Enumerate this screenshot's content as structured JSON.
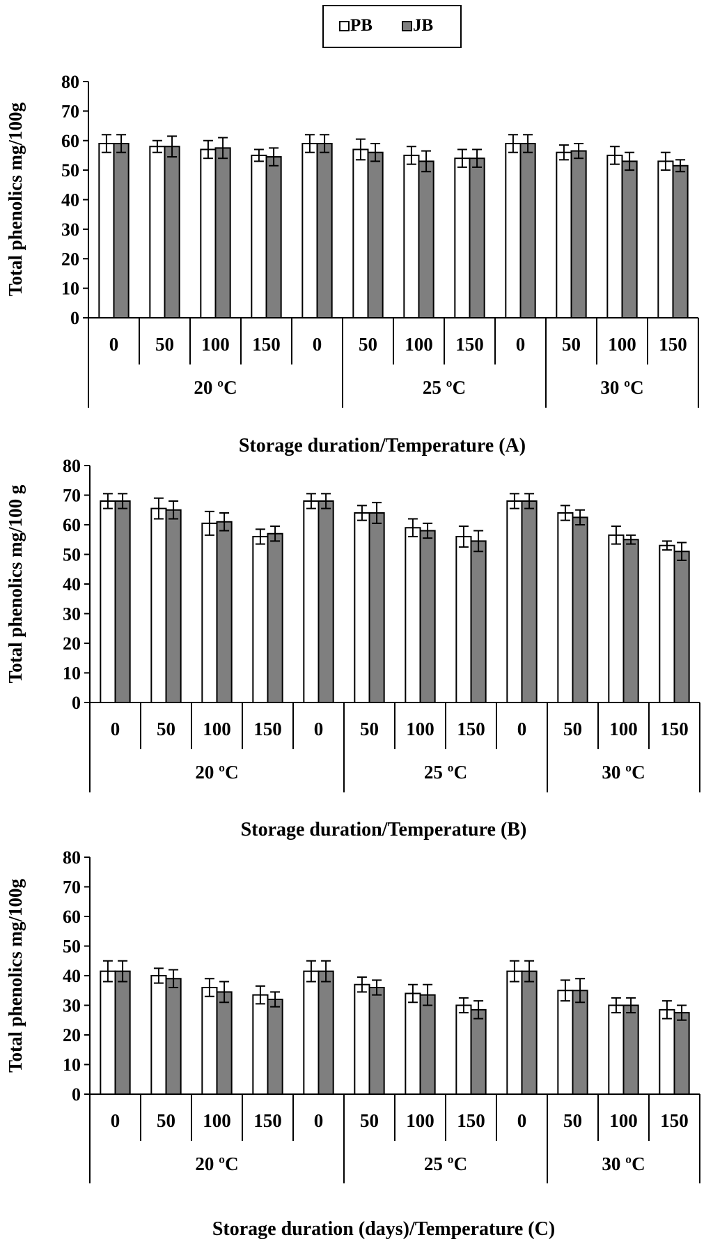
{
  "legend": {
    "entries": [
      {
        "name": "PB",
        "color": "#ffffff"
      },
      {
        "name": "JB",
        "color": "#7f7f7f"
      }
    ]
  },
  "chart_data": [
    {
      "type": "bar",
      "title": "",
      "xlabel": "Storage duration/Temperature (A)",
      "ylabel": "Total phenolics mg/100g",
      "ylim": [
        0,
        80
      ],
      "yticks": [
        "0",
        "10",
        "20",
        "30",
        "40",
        "50",
        "60",
        "70",
        "80"
      ],
      "categories": [
        "0",
        "50",
        "100",
        "150",
        "0",
        "50",
        "100",
        "150",
        "0",
        "50",
        "100",
        "150"
      ],
      "groups": [
        {
          "label": "20 ºC",
          "count": 5
        },
        {
          "label": "25 ºC",
          "count": 4
        },
        {
          "label": "30 ºC",
          "count": 3
        }
      ],
      "series": [
        {
          "name": "PB",
          "values": [
            59,
            58,
            57,
            55,
            59,
            57,
            55,
            54,
            59,
            56,
            55,
            53
          ],
          "errors": [
            3,
            2,
            3,
            2,
            3,
            3.5,
            3,
            3,
            3,
            2.5,
            3,
            3
          ]
        },
        {
          "name": "JB",
          "values": [
            59,
            58,
            57.5,
            54.5,
            59,
            56,
            53,
            54,
            59,
            56.5,
            53,
            51.5
          ],
          "errors": [
            3,
            3.5,
            3.5,
            3,
            3,
            3,
            3.5,
            3,
            3,
            2.5,
            3,
            2
          ]
        }
      ]
    },
    {
      "type": "bar",
      "title": "",
      "xlabel": "Storage duration/Temperature (B)",
      "ylabel": "Total phenolics mg/100 g",
      "ylim": [
        0,
        80
      ],
      "yticks": [
        "0",
        "10",
        "20",
        "30",
        "40",
        "50",
        "60",
        "70",
        "80"
      ],
      "categories": [
        "0",
        "50",
        "100",
        "150",
        "0",
        "50",
        "100",
        "150",
        "0",
        "50",
        "100",
        "150"
      ],
      "groups": [
        {
          "label": "20 ºC",
          "count": 5
        },
        {
          "label": "25 ºC",
          "count": 4
        },
        {
          "label": "30 ºC",
          "count": 3
        }
      ],
      "series": [
        {
          "name": "PB",
          "values": [
            68,
            65.5,
            60.5,
            56,
            68,
            64,
            59,
            56,
            68,
            64,
            56.5,
            53
          ],
          "errors": [
            2.5,
            3.5,
            4,
            2.5,
            2.5,
            2.5,
            3,
            3.5,
            2.5,
            2.5,
            3,
            1.5
          ]
        },
        {
          "name": "JB",
          "values": [
            68,
            65,
            61,
            57,
            68,
            64,
            58,
            54.5,
            68,
            62.5,
            55,
            51
          ],
          "errors": [
            2.5,
            3,
            3,
            2.5,
            2.5,
            3.5,
            2.5,
            3.5,
            2.5,
            2.5,
            1.5,
            3
          ]
        }
      ]
    },
    {
      "type": "bar",
      "title": "",
      "xlabel": "Storage duration (days)/Temperature (C)",
      "ylabel": "Total phenolics mg/100g",
      "ylim": [
        0,
        80
      ],
      "yticks": [
        "0",
        "10",
        "20",
        "30",
        "40",
        "50",
        "60",
        "70",
        "80"
      ],
      "categories": [
        "0",
        "50",
        "100",
        "150",
        "0",
        "50",
        "100",
        "150",
        "0",
        "50",
        "100",
        "150"
      ],
      "groups": [
        {
          "label": "20 ºC",
          "count": 5
        },
        {
          "label": "25 ºC",
          "count": 4
        },
        {
          "label": "30 ºC",
          "count": 3
        }
      ],
      "series": [
        {
          "name": "PB",
          "values": [
            41.5,
            40,
            36,
            33.5,
            41.5,
            37,
            34,
            30,
            41.5,
            35,
            30,
            28.5
          ],
          "errors": [
            3.5,
            2.5,
            3,
            3,
            3.5,
            2.5,
            3,
            2.5,
            3.5,
            3.5,
            2.5,
            3
          ]
        },
        {
          "name": "JB",
          "values": [
            41.5,
            39,
            34.5,
            32,
            41.5,
            36,
            33.5,
            28.5,
            41.5,
            35,
            30,
            27.5
          ],
          "errors": [
            3.5,
            3,
            3.5,
            2.5,
            3.5,
            2.5,
            3.5,
            3,
            3.5,
            4,
            2.5,
            2.5
          ]
        }
      ]
    }
  ]
}
